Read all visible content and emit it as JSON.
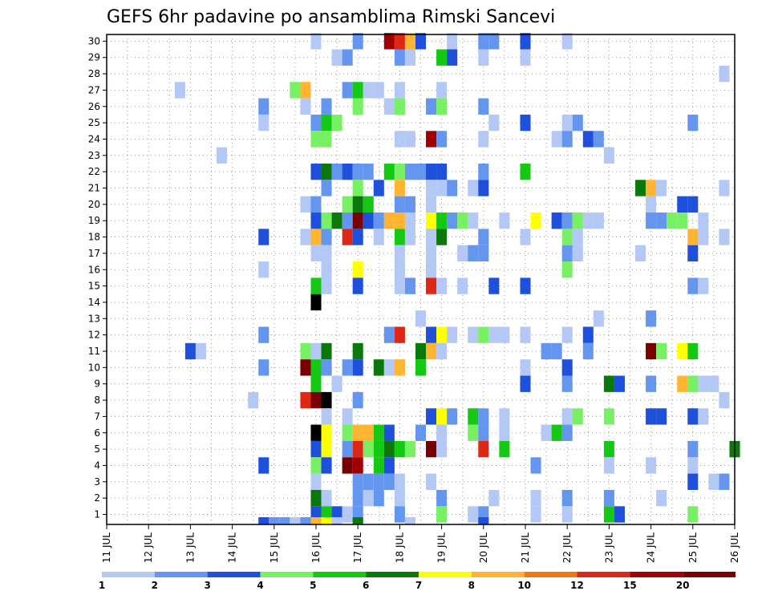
{
  "chart_data": {
    "type": "heatmap",
    "title": "GEFS 6hr padavine po ansamblima Rimski Sancevi",
    "x_labels": [
      "11 JUL",
      "12 JUL",
      "13 JUL",
      "14 JUL",
      "15 JUL",
      "16 JUL",
      "17 JUL",
      "18 JUL",
      "19 JUL",
      "20 JUL",
      "21 JUL",
      "22 JUL",
      "23 JUL",
      "24 JUL",
      "25 JUL",
      "26 JUL"
    ],
    "y_labels": [
      "1",
      "2",
      "3",
      "4",
      "5",
      "6",
      "7",
      "8",
      "9",
      "10",
      "11",
      "12",
      "13",
      "14",
      "15",
      "16",
      "17",
      "18",
      "19",
      "20",
      "21",
      "22",
      "23",
      "24",
      "25",
      "26",
      "27",
      "28",
      "29",
      "30"
    ],
    "x_steps": 60,
    "colorbar_levels": [
      "1",
      "2",
      "3",
      "4",
      "5",
      "6",
      "7",
      "8",
      "10",
      "12",
      "15",
      "20"
    ],
    "colorbar_colors": [
      "#b4c8f5",
      "#6496f0",
      "#1e50dc",
      "#78f064",
      "#14c814",
      "#0a780a",
      "#ffff00",
      "#ffb432",
      "#f07814",
      "#dc2814",
      "#a00000",
      "#780000"
    ],
    "cells": [
      [
        20,
        30,
        1
      ],
      [
        24,
        30,
        2
      ],
      [
        27,
        30,
        11
      ],
      [
        28,
        30,
        10
      ],
      [
        29,
        30,
        8
      ],
      [
        30,
        30,
        3
      ],
      [
        33,
        30,
        1
      ],
      [
        36,
        30,
        2
      ],
      [
        37,
        30,
        2
      ],
      [
        40,
        30,
        3
      ],
      [
        44,
        30,
        1
      ],
      [
        22,
        29,
        1
      ],
      [
        23,
        29,
        2
      ],
      [
        28,
        29,
        2
      ],
      [
        29,
        29,
        1
      ],
      [
        32,
        29,
        5
      ],
      [
        33,
        29,
        3
      ],
      [
        36,
        29,
        1
      ],
      [
        40,
        29,
        1
      ],
      [
        59,
        28,
        1
      ],
      [
        7,
        27,
        1
      ],
      [
        18,
        27,
        4
      ],
      [
        19,
        27,
        8
      ],
      [
        23,
        27,
        2
      ],
      [
        24,
        27,
        5
      ],
      [
        25,
        27,
        1
      ],
      [
        26,
        27,
        1
      ],
      [
        28,
        27,
        1
      ],
      [
        32,
        27,
        1
      ],
      [
        15,
        26,
        2
      ],
      [
        19,
        26,
        1
      ],
      [
        21,
        26,
        2
      ],
      [
        24,
        26,
        4
      ],
      [
        27,
        26,
        1
      ],
      [
        28,
        26,
        4
      ],
      [
        31,
        26,
        2
      ],
      [
        32,
        26,
        4
      ],
      [
        36,
        26,
        2
      ],
      [
        15,
        25,
        1
      ],
      [
        20,
        25,
        2
      ],
      [
        21,
        25,
        5
      ],
      [
        22,
        25,
        4
      ],
      [
        37,
        25,
        1
      ],
      [
        40,
        25,
        3
      ],
      [
        44,
        25,
        1
      ],
      [
        45,
        25,
        2
      ],
      [
        56,
        25,
        2
      ],
      [
        20,
        24,
        4
      ],
      [
        21,
        24,
        4
      ],
      [
        28,
        24,
        1
      ],
      [
        29,
        24,
        1
      ],
      [
        31,
        24,
        11
      ],
      [
        32,
        24,
        2
      ],
      [
        36,
        24,
        1
      ],
      [
        43,
        24,
        1
      ],
      [
        44,
        24,
        2
      ],
      [
        46,
        24,
        3
      ],
      [
        47,
        24,
        2
      ],
      [
        11,
        23,
        1
      ],
      [
        48,
        23,
        1
      ],
      [
        20,
        22,
        3
      ],
      [
        21,
        22,
        6
      ],
      [
        22,
        22,
        2
      ],
      [
        23,
        22,
        3
      ],
      [
        24,
        22,
        2
      ],
      [
        25,
        22,
        2
      ],
      [
        27,
        22,
        5
      ],
      [
        28,
        22,
        4
      ],
      [
        29,
        22,
        2
      ],
      [
        30,
        22,
        2
      ],
      [
        31,
        22,
        3
      ],
      [
        32,
        22,
        3
      ],
      [
        36,
        22,
        2
      ],
      [
        40,
        22,
        5
      ],
      [
        21,
        21,
        2
      ],
      [
        24,
        21,
        4
      ],
      [
        26,
        21,
        3
      ],
      [
        28,
        21,
        8
      ],
      [
        31,
        21,
        1
      ],
      [
        32,
        21,
        1
      ],
      [
        33,
        21,
        2
      ],
      [
        35,
        21,
        1
      ],
      [
        36,
        21,
        3
      ],
      [
        51,
        21,
        6
      ],
      [
        52,
        21,
        8
      ],
      [
        53,
        21,
        1
      ],
      [
        59,
        21,
        1
      ],
      [
        19,
        20,
        1
      ],
      [
        20,
        20,
        2
      ],
      [
        23,
        20,
        4
      ],
      [
        24,
        20,
        6
      ],
      [
        25,
        20,
        5
      ],
      [
        28,
        20,
        2
      ],
      [
        29,
        20,
        2
      ],
      [
        31,
        20,
        1
      ],
      [
        52,
        20,
        1
      ],
      [
        55,
        20,
        3
      ],
      [
        56,
        20,
        3
      ],
      [
        20,
        19,
        3
      ],
      [
        21,
        19,
        4
      ],
      [
        22,
        19,
        6
      ],
      [
        23,
        19,
        2
      ],
      [
        24,
        19,
        12
      ],
      [
        25,
        19,
        3
      ],
      [
        26,
        19,
        2
      ],
      [
        27,
        19,
        8
      ],
      [
        28,
        19,
        8
      ],
      [
        29,
        19,
        1
      ],
      [
        31,
        19,
        7
      ],
      [
        32,
        19,
        5
      ],
      [
        33,
        19,
        2
      ],
      [
        34,
        19,
        4
      ],
      [
        35,
        19,
        1
      ],
      [
        38,
        19,
        1
      ],
      [
        41,
        19,
        7
      ],
      [
        43,
        19,
        3
      ],
      [
        44,
        19,
        2
      ],
      [
        45,
        19,
        4
      ],
      [
        46,
        19,
        1
      ],
      [
        47,
        19,
        1
      ],
      [
        52,
        19,
        2
      ],
      [
        53,
        19,
        2
      ],
      [
        54,
        19,
        4
      ],
      [
        55,
        19,
        4
      ],
      [
        57,
        19,
        1
      ],
      [
        15,
        18,
        3
      ],
      [
        19,
        18,
        1
      ],
      [
        20,
        18,
        8
      ],
      [
        21,
        18,
        2
      ],
      [
        23,
        18,
        10
      ],
      [
        24,
        18,
        3
      ],
      [
        26,
        18,
        1
      ],
      [
        28,
        18,
        5
      ],
      [
        29,
        18,
        1
      ],
      [
        31,
        18,
        1
      ],
      [
        32,
        18,
        6
      ],
      [
        36,
        18,
        2
      ],
      [
        40,
        18,
        1
      ],
      [
        44,
        18,
        4
      ],
      [
        45,
        18,
        1
      ],
      [
        56,
        18,
        8
      ],
      [
        57,
        18,
        1
      ],
      [
        59,
        18,
        1
      ],
      [
        20,
        17,
        1
      ],
      [
        21,
        17,
        1
      ],
      [
        28,
        17,
        1
      ],
      [
        31,
        17,
        1
      ],
      [
        34,
        17,
        1
      ],
      [
        35,
        17,
        2
      ],
      [
        36,
        17,
        2
      ],
      [
        44,
        17,
        2
      ],
      [
        45,
        17,
        1
      ],
      [
        51,
        17,
        1
      ],
      [
        56,
        17,
        3
      ],
      [
        15,
        16,
        1
      ],
      [
        21,
        16,
        1
      ],
      [
        24,
        16,
        7
      ],
      [
        28,
        16,
        1
      ],
      [
        31,
        16,
        1
      ],
      [
        44,
        16,
        4
      ],
      [
        20,
        15,
        5
      ],
      [
        21,
        15,
        1
      ],
      [
        24,
        15,
        3
      ],
      [
        28,
        15,
        1
      ],
      [
        29,
        15,
        2
      ],
      [
        31,
        15,
        10
      ],
      [
        32,
        15,
        1
      ],
      [
        34,
        15,
        1
      ],
      [
        37,
        15,
        3
      ],
      [
        40,
        15,
        3
      ],
      [
        56,
        15,
        2
      ],
      [
        57,
        15,
        1
      ],
      [
        20,
        14,
        13
      ],
      [
        30,
        13,
        1
      ],
      [
        47,
        13,
        1
      ],
      [
        52,
        13,
        2
      ],
      [
        15,
        12,
        2
      ],
      [
        27,
        12,
        2
      ],
      [
        28,
        12,
        10
      ],
      [
        31,
        12,
        3
      ],
      [
        32,
        12,
        7
      ],
      [
        33,
        12,
        1
      ],
      [
        35,
        12,
        1
      ],
      [
        36,
        12,
        4
      ],
      [
        37,
        12,
        1
      ],
      [
        38,
        12,
        1
      ],
      [
        40,
        12,
        1
      ],
      [
        44,
        12,
        1
      ],
      [
        46,
        12,
        3
      ],
      [
        8,
        11,
        3
      ],
      [
        9,
        11,
        1
      ],
      [
        19,
        11,
        4
      ],
      [
        20,
        11,
        1
      ],
      [
        21,
        11,
        6
      ],
      [
        24,
        11,
        6
      ],
      [
        30,
        11,
        6
      ],
      [
        31,
        11,
        8
      ],
      [
        32,
        11,
        1
      ],
      [
        42,
        11,
        2
      ],
      [
        43,
        11,
        2
      ],
      [
        46,
        11,
        2
      ],
      [
        52,
        11,
        12
      ],
      [
        53,
        11,
        4
      ],
      [
        55,
        11,
        7
      ],
      [
        56,
        11,
        5
      ],
      [
        15,
        10,
        2
      ],
      [
        19,
        10,
        12
      ],
      [
        20,
        10,
        5
      ],
      [
        21,
        10,
        2
      ],
      [
        23,
        10,
        2
      ],
      [
        24,
        10,
        3
      ],
      [
        26,
        10,
        6
      ],
      [
        27,
        10,
        1
      ],
      [
        28,
        10,
        8
      ],
      [
        30,
        10,
        5
      ],
      [
        40,
        10,
        1
      ],
      [
        44,
        10,
        3
      ],
      [
        20,
        9,
        5
      ],
      [
        22,
        9,
        1
      ],
      [
        40,
        9,
        3
      ],
      [
        44,
        9,
        2
      ],
      [
        48,
        9,
        6
      ],
      [
        49,
        9,
        3
      ],
      [
        52,
        9,
        2
      ],
      [
        55,
        9,
        8
      ],
      [
        56,
        9,
        4
      ],
      [
        57,
        9,
        1
      ],
      [
        58,
        9,
        1
      ],
      [
        14,
        8,
        1
      ],
      [
        19,
        8,
        10
      ],
      [
        20,
        8,
        12
      ],
      [
        21,
        8,
        13
      ],
      [
        24,
        8,
        2
      ],
      [
        59,
        8,
        1
      ],
      [
        21,
        7,
        1
      ],
      [
        23,
        7,
        1
      ],
      [
        31,
        7,
        3
      ],
      [
        32,
        7,
        7
      ],
      [
        33,
        7,
        2
      ],
      [
        35,
        7,
        5
      ],
      [
        36,
        7,
        2
      ],
      [
        38,
        7,
        1
      ],
      [
        44,
        7,
        1
      ],
      [
        45,
        7,
        4
      ],
      [
        48,
        7,
        4
      ],
      [
        52,
        7,
        3
      ],
      [
        53,
        7,
        3
      ],
      [
        56,
        7,
        3
      ],
      [
        57,
        7,
        1
      ],
      [
        20,
        6,
        13
      ],
      [
        21,
        6,
        7
      ],
      [
        23,
        6,
        4
      ],
      [
        24,
        6,
        8
      ],
      [
        25,
        6,
        8
      ],
      [
        26,
        6,
        5
      ],
      [
        27,
        6,
        3
      ],
      [
        30,
        6,
        2
      ],
      [
        32,
        6,
        1
      ],
      [
        35,
        6,
        4
      ],
      [
        36,
        6,
        2
      ],
      [
        38,
        6,
        1
      ],
      [
        42,
        6,
        1
      ],
      [
        43,
        6,
        5
      ],
      [
        44,
        6,
        2
      ],
      [
        20,
        5,
        3
      ],
      [
        21,
        5,
        7
      ],
      [
        23,
        5,
        2
      ],
      [
        24,
        5,
        10
      ],
      [
        25,
        5,
        4
      ],
      [
        26,
        5,
        5
      ],
      [
        27,
        5,
        6
      ],
      [
        28,
        5,
        5
      ],
      [
        29,
        5,
        4
      ],
      [
        31,
        5,
        12
      ],
      [
        32,
        5,
        1
      ],
      [
        36,
        5,
        10
      ],
      [
        38,
        5,
        5
      ],
      [
        48,
        5,
        5
      ],
      [
        56,
        5,
        2
      ],
      [
        60,
        5,
        6
      ],
      [
        15,
        4,
        3
      ],
      [
        20,
        4,
        4
      ],
      [
        21,
        4,
        3
      ],
      [
        23,
        4,
        12
      ],
      [
        24,
        4,
        11
      ],
      [
        26,
        4,
        5
      ],
      [
        27,
        4,
        3
      ],
      [
        41,
        4,
        2
      ],
      [
        48,
        4,
        1
      ],
      [
        52,
        4,
        1
      ],
      [
        56,
        4,
        1
      ],
      [
        20,
        3,
        1
      ],
      [
        24,
        3,
        2
      ],
      [
        25,
        3,
        2
      ],
      [
        26,
        3,
        2
      ],
      [
        27,
        3,
        2
      ],
      [
        28,
        3,
        1
      ],
      [
        31,
        3,
        1
      ],
      [
        56,
        3,
        3
      ],
      [
        58,
        3,
        1
      ],
      [
        59,
        3,
        2
      ],
      [
        20,
        2,
        6
      ],
      [
        21,
        2,
        1
      ],
      [
        24,
        2,
        2
      ],
      [
        25,
        2,
        1
      ],
      [
        26,
        2,
        2
      ],
      [
        28,
        2,
        1
      ],
      [
        32,
        2,
        2
      ],
      [
        37,
        2,
        1
      ],
      [
        41,
        2,
        1
      ],
      [
        44,
        2,
        2
      ],
      [
        48,
        2,
        2
      ],
      [
        53,
        2,
        1
      ],
      [
        20,
        1,
        3
      ],
      [
        21,
        1,
        5
      ],
      [
        22,
        1,
        3
      ],
      [
        23,
        1,
        1
      ],
      [
        24,
        1,
        2
      ],
      [
        28,
        1,
        2
      ],
      [
        32,
        1,
        4
      ],
      [
        35,
        1,
        1
      ],
      [
        36,
        1,
        2
      ],
      [
        41,
        1,
        1
      ],
      [
        44,
        1,
        1
      ],
      [
        48,
        1,
        5
      ],
      [
        49,
        1,
        3
      ],
      [
        56,
        1,
        4
      ],
      [
        15,
        0,
        3
      ],
      [
        16,
        0,
        2
      ],
      [
        17,
        0,
        2
      ],
      [
        18,
        0,
        1
      ],
      [
        19,
        0,
        2
      ],
      [
        20,
        0,
        8
      ],
      [
        21,
        0,
        7
      ],
      [
        22,
        0,
        1
      ],
      [
        24,
        0,
        6
      ],
      [
        29,
        0,
        1
      ],
      [
        36,
        0,
        3
      ]
    ]
  }
}
